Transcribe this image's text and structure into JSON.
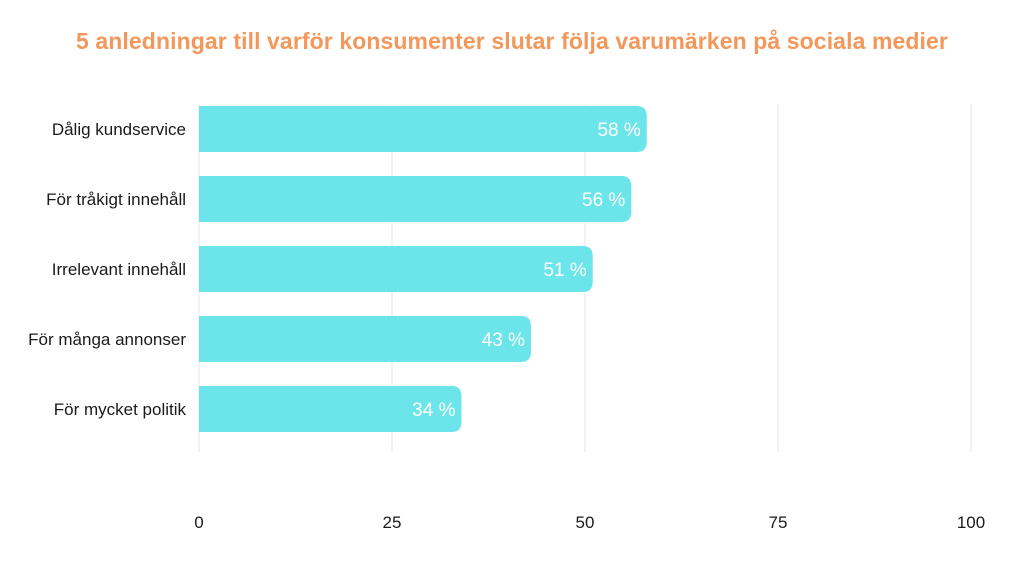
{
  "chart_data": {
    "type": "bar",
    "orientation": "horizontal",
    "title": "5 anledningar till varför konsumenter slutar följa varumärken på sociala medier",
    "categories": [
      "Dålig kundservice",
      "För tråkigt innehåll",
      "Irrelevant innehåll",
      "För många annonser",
      "För mycket politik"
    ],
    "values": [
      58,
      56,
      51,
      43,
      34
    ],
    "value_labels": [
      "58 %",
      "56 %",
      "51 %",
      "43 %",
      "34 %"
    ],
    "xlim": [
      0,
      100
    ],
    "xticks": [
      0,
      25,
      50,
      75,
      100
    ],
    "tick_labels": [
      "0",
      "25",
      "50",
      "75",
      "100"
    ],
    "grid": true,
    "colors": {
      "bar": "#6ce5ea",
      "title": "#f4975a",
      "grid": "#e6e6e6"
    }
  }
}
